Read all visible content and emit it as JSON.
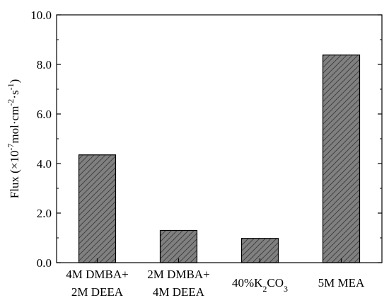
{
  "chart_data": {
    "type": "bar",
    "title": "",
    "ylabel_parts": [
      {
        "t": "Flux (×10",
        "s": "n"
      },
      {
        "t": "-7",
        "s": "sup"
      },
      {
        "t": "mol·cm",
        "s": "n"
      },
      {
        "t": "-2",
        "s": "sup"
      },
      {
        "t": "·s",
        "s": "n"
      },
      {
        "t": "-1",
        "s": "sup"
      },
      {
        "t": ")",
        "s": "n"
      }
    ],
    "ylim": [
      0,
      10
    ],
    "yticks": [
      "0.0",
      "2.0",
      "4.0",
      "6.0",
      "8.0",
      "10.0"
    ],
    "grid": false,
    "bar_fill": "#808080",
    "hatch": "diagonal",
    "categories": [
      {
        "lines": [
          [
            {
              "t": "4M DMBA+",
              "s": "n"
            }
          ],
          [
            {
              "t": "2M DEEA",
              "s": "n"
            }
          ]
        ]
      },
      {
        "lines": [
          [
            {
              "t": "2M DMBA+",
              "s": "n"
            }
          ],
          [
            {
              "t": "4M DEEA",
              "s": "n"
            }
          ]
        ]
      },
      {
        "lines": [
          [
            {
              "t": "40%K",
              "s": "n"
            },
            {
              "t": "2",
              "s": "sub"
            },
            {
              "t": "CO",
              "s": "n"
            },
            {
              "t": "3",
              "s": "sub"
            }
          ]
        ]
      },
      {
        "lines": [
          [
            {
              "t": "5M MEA",
              "s": "n"
            }
          ]
        ]
      }
    ],
    "values": [
      4.35,
      1.3,
      0.98,
      8.38
    ]
  }
}
